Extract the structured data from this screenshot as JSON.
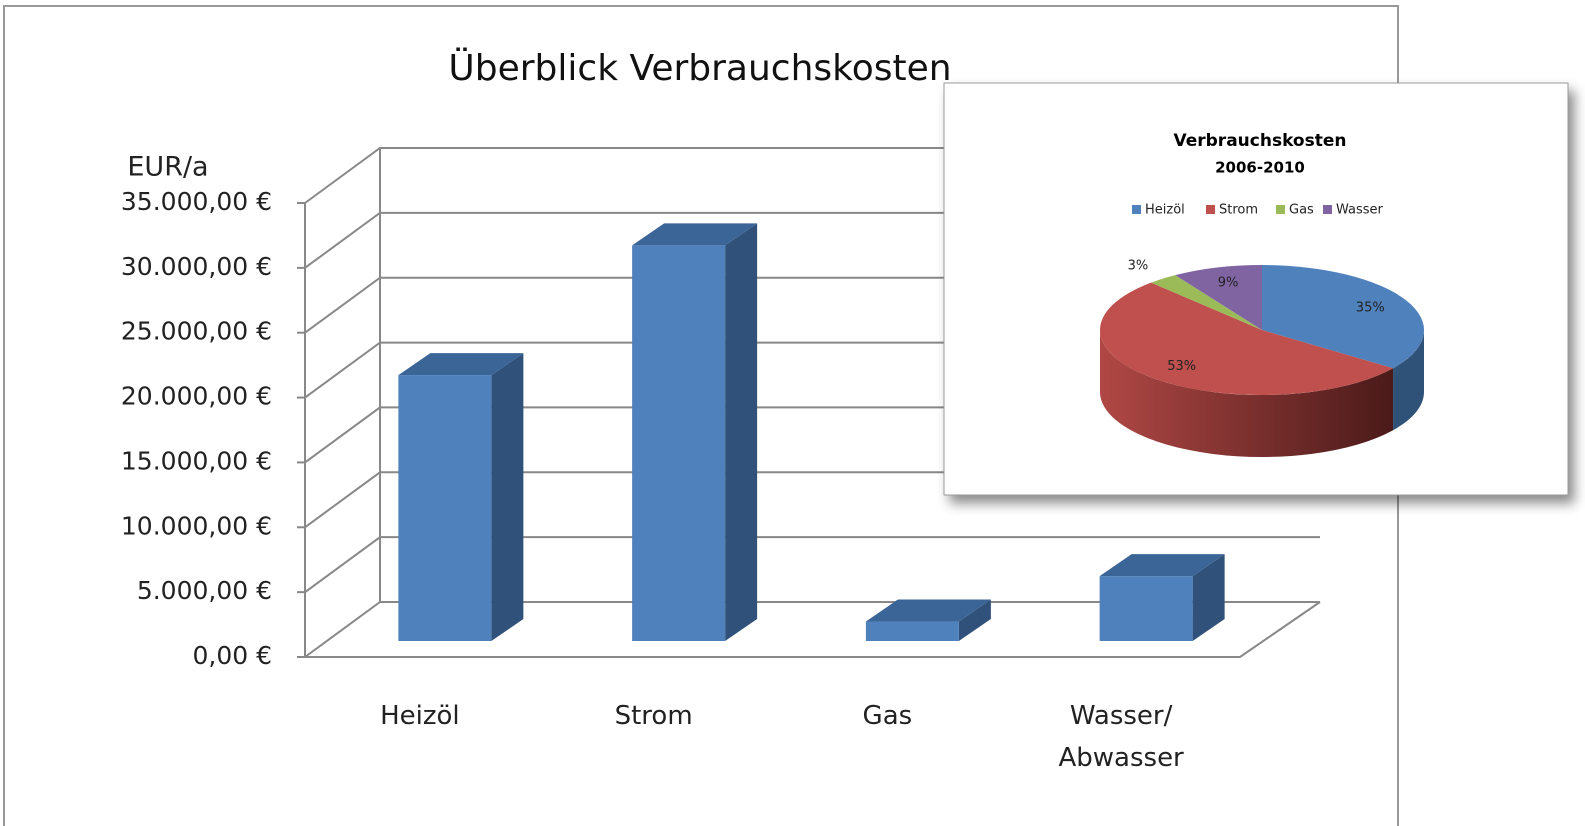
{
  "chart_data": [
    {
      "type": "bar3d",
      "title": "Überblick Verbrauchskosten",
      "y_label": "EUR/a",
      "categories": [
        "Heizöl",
        "Strom",
        "Gas",
        "Wasser/\nAbwasser"
      ],
      "values": [
        20500,
        30500,
        1500,
        5000
      ],
      "color": "#4f81bd",
      "ylim": [
        0,
        35000
      ],
      "yticks": [
        {
          "value": 0,
          "label": "0,00 €"
        },
        {
          "value": 5000,
          "label": "5.000,00 €"
        },
        {
          "value": 10000,
          "label": "10.000,00 €"
        },
        {
          "value": 15000,
          "label": "15.000,00 €"
        },
        {
          "value": 20000,
          "label": "20.000,00 €"
        },
        {
          "value": 25000,
          "label": "25.000,00 €"
        },
        {
          "value": 30000,
          "label": "30.000,00 €"
        },
        {
          "value": 35000,
          "label": "35.000,00 €"
        }
      ],
      "grid": true
    },
    {
      "type": "pie3d",
      "title": "Verbrauchskosten",
      "subtitle": "2006-2010",
      "categories": [
        "Heizöl",
        "Strom",
        "Gas",
        "Wasser"
      ],
      "values": [
        35,
        53,
        3,
        9
      ],
      "value_labels": [
        "35%",
        "53%",
        "3%",
        "9%"
      ],
      "colors": [
        "#4f81bd",
        "#c0504d",
        "#9bbb59",
        "#8064a2"
      ],
      "legend": "top"
    }
  ]
}
